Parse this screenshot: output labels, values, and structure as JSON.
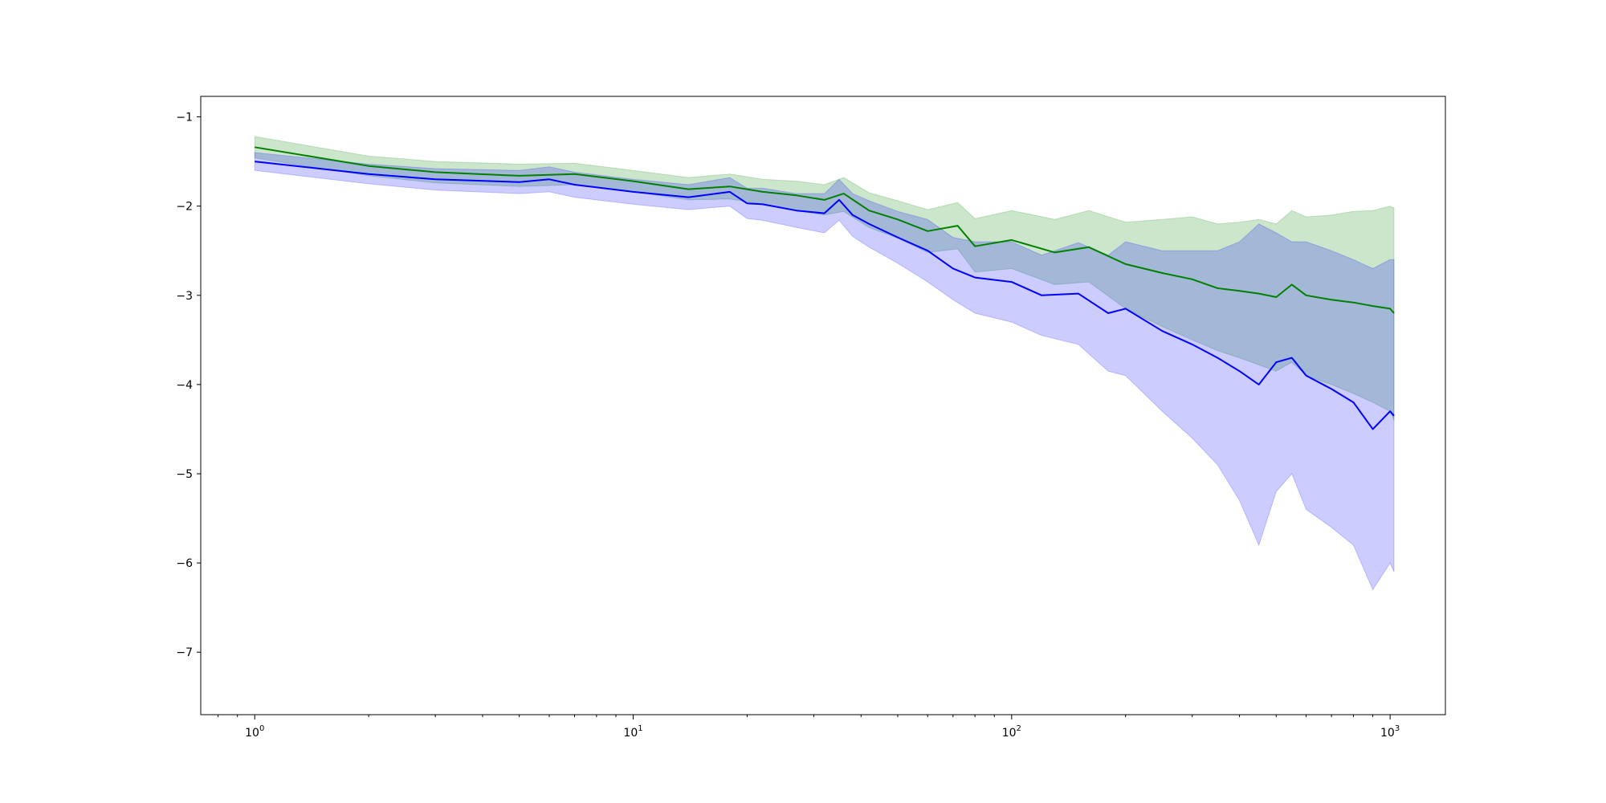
{
  "chart_data": {
    "type": "line",
    "title": "",
    "xlabel": "",
    "ylabel": "",
    "x_scale": "log",
    "xlim": [
      0.72,
      1400
    ],
    "ylim": [
      -7.7,
      -0.77
    ],
    "grid": false,
    "legend": "none",
    "x_ticks": [
      {
        "value": 1,
        "base": "10",
        "exp": "0"
      },
      {
        "value": 10,
        "base": "10",
        "exp": "1"
      },
      {
        "value": 100,
        "base": "10",
        "exp": "2"
      },
      {
        "value": 1000,
        "base": "10",
        "exp": "3"
      }
    ],
    "y_ticks": [
      {
        "value": -1,
        "label": "−1"
      },
      {
        "value": -2,
        "label": "−2"
      },
      {
        "value": -3,
        "label": "−3"
      },
      {
        "value": -4,
        "label": "−4"
      },
      {
        "value": -5,
        "label": "−5"
      },
      {
        "value": -6,
        "label": "−6"
      },
      {
        "value": -7,
        "label": "−7"
      }
    ],
    "series": [
      {
        "color": "#008000",
        "band_color": "#008000",
        "x": [
          1,
          2,
          3,
          5,
          7,
          10,
          14,
          18,
          22,
          27,
          32,
          36,
          42,
          50,
          60,
          72,
          80,
          100,
          130,
          160,
          200,
          250,
          300,
          350,
          400,
          450,
          500,
          550,
          600,
          700,
          800,
          900,
          1000,
          1024
        ],
        "y": [
          -1.34,
          -1.55,
          -1.62,
          -1.66,
          -1.64,
          -1.72,
          -1.81,
          -1.78,
          -1.84,
          -1.88,
          -1.93,
          -1.86,
          -2.05,
          -2.15,
          -2.28,
          -2.22,
          -2.45,
          -2.38,
          -2.52,
          -2.46,
          -2.65,
          -2.75,
          -2.82,
          -2.92,
          -2.95,
          -2.98,
          -3.02,
          -2.88,
          -3.0,
          -3.05,
          -3.08,
          -3.12,
          -3.15,
          -3.2
        ],
        "lower": [
          -1.46,
          -1.66,
          -1.74,
          -1.78,
          -1.76,
          -1.84,
          -1.93,
          -1.92,
          -1.98,
          -2.05,
          -2.1,
          -2.06,
          -2.24,
          -2.36,
          -2.52,
          -2.48,
          -2.74,
          -2.7,
          -2.88,
          -2.85,
          -3.15,
          -3.35,
          -3.5,
          -3.62,
          -3.7,
          -3.78,
          -3.85,
          -3.75,
          -3.9,
          -4.0,
          -4.1,
          -4.2,
          -4.3,
          -4.4
        ],
        "upper": [
          -1.22,
          -1.44,
          -1.5,
          -1.53,
          -1.52,
          -1.6,
          -1.68,
          -1.64,
          -1.7,
          -1.72,
          -1.76,
          -1.68,
          -1.85,
          -1.94,
          -2.04,
          -1.96,
          -2.14,
          -2.05,
          -2.15,
          -2.05,
          -2.18,
          -2.15,
          -2.12,
          -2.2,
          -2.18,
          -2.15,
          -2.2,
          -2.05,
          -2.12,
          -2.1,
          -2.06,
          -2.05,
          -2.0,
          -2.02
        ]
      },
      {
        "color": "#0000ff",
        "band_color": "#0000ff",
        "x": [
          1,
          2,
          3,
          5,
          6,
          7,
          10,
          14,
          18,
          20,
          22,
          27,
          32,
          35,
          38,
          42,
          50,
          60,
          70,
          80,
          100,
          120,
          150,
          180,
          200,
          250,
          300,
          350,
          400,
          450,
          500,
          550,
          600,
          700,
          800,
          900,
          1000,
          1024
        ],
        "y": [
          -1.5,
          -1.64,
          -1.7,
          -1.73,
          -1.7,
          -1.76,
          -1.84,
          -1.9,
          -1.84,
          -1.97,
          -1.98,
          -2.05,
          -2.08,
          -1.93,
          -2.1,
          -2.2,
          -2.35,
          -2.5,
          -2.7,
          -2.8,
          -2.85,
          -3.0,
          -2.98,
          -3.2,
          -3.15,
          -3.4,
          -3.55,
          -3.7,
          -3.85,
          -4.0,
          -3.75,
          -3.7,
          -3.9,
          -4.05,
          -4.2,
          -4.5,
          -4.3,
          -4.35
        ],
        "lower": [
          -1.6,
          -1.75,
          -1.82,
          -1.86,
          -1.84,
          -1.9,
          -1.98,
          -2.04,
          -2.0,
          -2.14,
          -2.16,
          -2.24,
          -2.3,
          -2.16,
          -2.34,
          -2.46,
          -2.64,
          -2.85,
          -3.05,
          -3.2,
          -3.3,
          -3.45,
          -3.55,
          -3.85,
          -3.9,
          -4.3,
          -4.6,
          -4.9,
          -5.3,
          -5.8,
          -5.2,
          -5.0,
          -5.4,
          -5.6,
          -5.8,
          -6.3,
          -6.0,
          -6.1
        ],
        "upper": [
          -1.4,
          -1.53,
          -1.58,
          -1.6,
          -1.56,
          -1.62,
          -1.7,
          -1.76,
          -1.68,
          -1.8,
          -1.8,
          -1.86,
          -1.86,
          -1.7,
          -1.86,
          -1.94,
          -2.06,
          -2.15,
          -2.35,
          -2.4,
          -2.4,
          -2.55,
          -2.41,
          -2.55,
          -2.4,
          -2.5,
          -2.5,
          -2.5,
          -2.4,
          -2.2,
          -2.3,
          -2.4,
          -2.4,
          -2.5,
          -2.6,
          -2.7,
          -2.6,
          -2.6
        ]
      }
    ]
  }
}
